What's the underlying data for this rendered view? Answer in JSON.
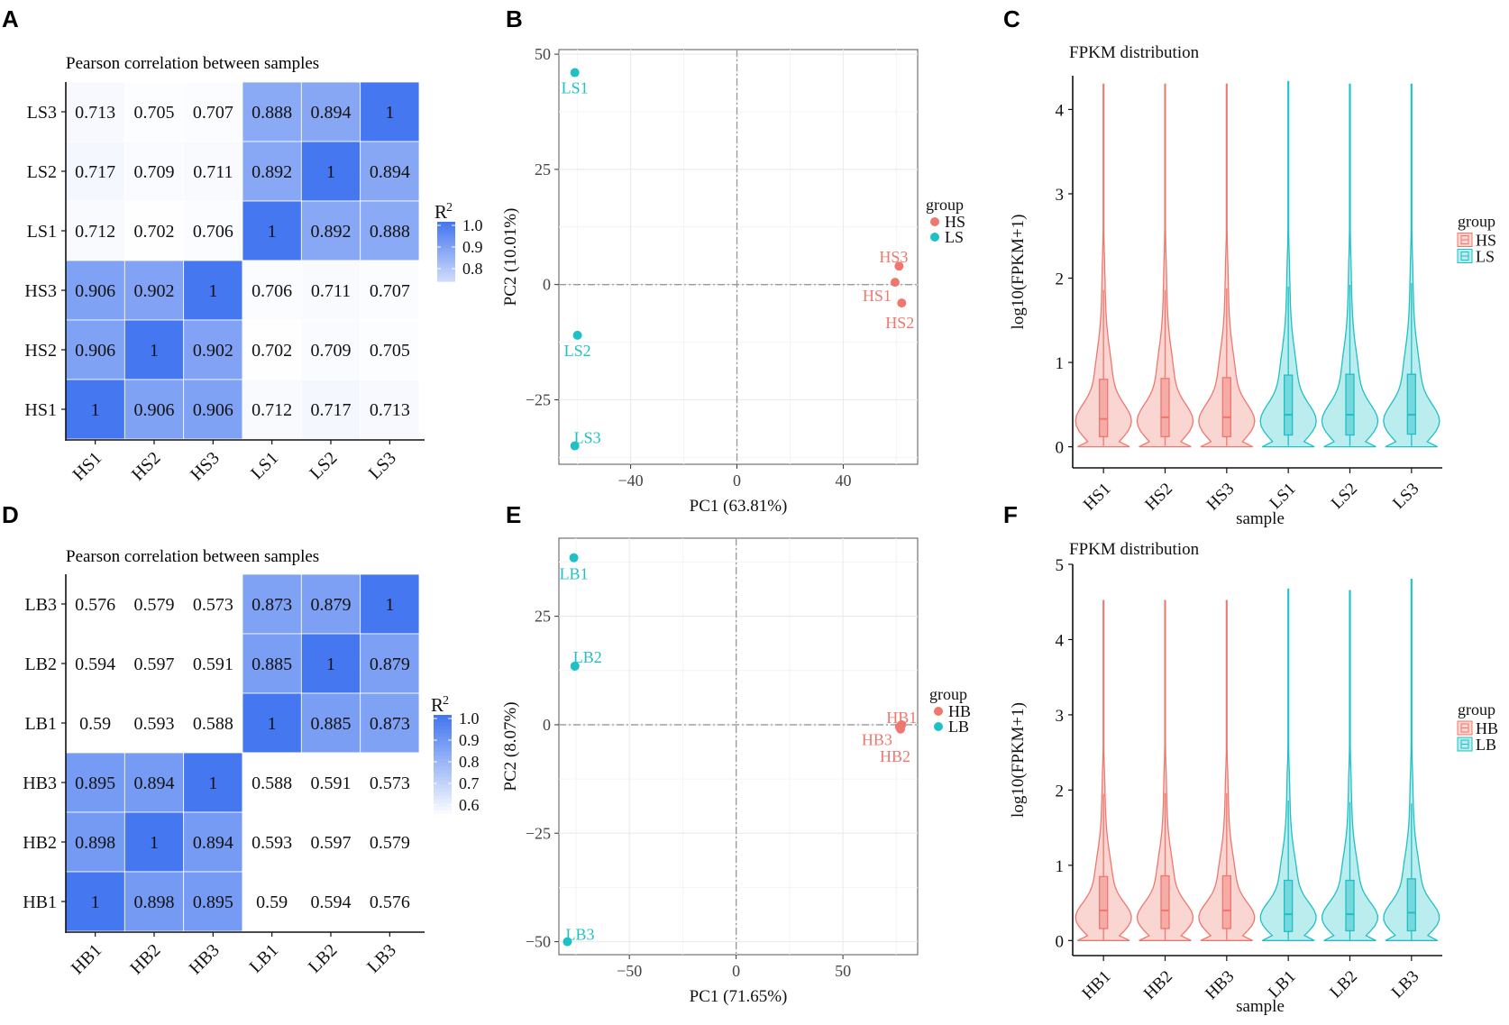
{
  "colors": {
    "hs": "#f0776e",
    "ls": "#1fc0c6",
    "heat_high": "#4577f0",
    "grid": "#ececec",
    "axis": "#111111",
    "zero_line": "#999999"
  },
  "chart_data": [
    {
      "id": "A",
      "type": "heatmap",
      "letter": "A",
      "title": "Pearson correlation between samples",
      "rows": [
        "LS3",
        "LS2",
        "LS1",
        "HS3",
        "HS2",
        "HS1"
      ],
      "cols": [
        "HS1",
        "HS2",
        "HS3",
        "LS1",
        "LS2",
        "LS3"
      ],
      "values": [
        [
          0.713,
          0.705,
          0.707,
          0.888,
          0.894,
          1
        ],
        [
          0.717,
          0.709,
          0.711,
          0.892,
          1,
          0.894
        ],
        [
          0.712,
          0.702,
          0.706,
          1,
          0.892,
          0.888
        ],
        [
          0.906,
          0.902,
          1,
          0.706,
          0.711,
          0.707
        ],
        [
          0.906,
          1,
          0.902,
          0.702,
          0.709,
          0.705
        ],
        [
          1,
          0.906,
          0.906,
          0.712,
          0.717,
          0.713
        ]
      ],
      "color_min": 0.7,
      "color_max": 1.0,
      "legend": {
        "title_base": "R",
        "title_sup": "2",
        "ticks": [
          "1.0",
          "0.9",
          "0.8"
        ],
        "tick_values": [
          1.0,
          0.9,
          0.8
        ]
      }
    },
    {
      "id": "B",
      "type": "scatter",
      "letter": "B",
      "xlabel": "PC1 (63.81%)",
      "ylabel": "PC2 (10.01%)",
      "xlim": [
        -67,
        68
      ],
      "ylim": [
        -39,
        51
      ],
      "xticks": [
        -40,
        0,
        40
      ],
      "xtick_labels": [
        "−40",
        "0",
        "40"
      ],
      "yticks": [
        -25,
        0,
        25,
        50
      ],
      "ytick_labels": [
        "−25",
        "0",
        "25",
        "50"
      ],
      "legend_title": "group",
      "legend_entries": [
        "HS",
        "LS"
      ],
      "points": [
        {
          "label": "LS1",
          "group": "LS",
          "x": -61,
          "y": 46
        },
        {
          "label": "LS2",
          "group": "LS",
          "x": -60,
          "y": -11
        },
        {
          "label": "LS3",
          "group": "LS",
          "x": -61,
          "y": -35
        },
        {
          "label": "HS3",
          "group": "HS",
          "x": 61,
          "y": 4
        },
        {
          "label": "HS1",
          "group": "HS",
          "x": 59.5,
          "y": 0.5
        },
        {
          "label": "HS2",
          "group": "HS",
          "x": 62,
          "y": -4
        }
      ]
    },
    {
      "id": "C",
      "type": "violin",
      "letter": "C",
      "title": "FPKM distribution",
      "xlabel": "sample",
      "ylabel": "log10(FPKM+1)",
      "ylim": [
        -0.25,
        4.4
      ],
      "yticks": [
        0,
        1,
        2,
        3,
        4
      ],
      "legend_title": "group",
      "legend_entries": [
        "HS",
        "LS"
      ],
      "samples": [
        {
          "name": "HS1",
          "group": "HS",
          "max": 4.3,
          "q1": 0.12,
          "median": 0.33,
          "q3": 0.8,
          "whisker_high": 1.86
        },
        {
          "name": "HS2",
          "group": "HS",
          "max": 4.3,
          "q1": 0.12,
          "median": 0.35,
          "q3": 0.81,
          "whisker_high": 1.86
        },
        {
          "name": "HS3",
          "group": "HS",
          "max": 4.3,
          "q1": 0.12,
          "median": 0.35,
          "q3": 0.82,
          "whisker_high": 1.88
        },
        {
          "name": "LS1",
          "group": "LS",
          "max": 4.33,
          "q1": 0.14,
          "median": 0.38,
          "q3": 0.85,
          "whisker_high": 1.9
        },
        {
          "name": "LS2",
          "group": "LS",
          "max": 4.3,
          "q1": 0.14,
          "median": 0.38,
          "q3": 0.86,
          "whisker_high": 1.92
        },
        {
          "name": "LS3",
          "group": "LS",
          "max": 4.3,
          "q1": 0.15,
          "median": 0.38,
          "q3": 0.86,
          "whisker_high": 1.94
        }
      ]
    },
    {
      "id": "D",
      "type": "heatmap",
      "letter": "D",
      "title": "Pearson correlation between samples",
      "rows": [
        "LB3",
        "LB2",
        "LB1",
        "HB3",
        "HB2",
        "HB1"
      ],
      "cols": [
        "HB1",
        "HB2",
        "HB3",
        "LB1",
        "LB2",
        "LB3"
      ],
      "values": [
        [
          0.576,
          0.579,
          0.573,
          0.873,
          0.879,
          1
        ],
        [
          0.594,
          0.597,
          0.591,
          0.885,
          1,
          0.879
        ],
        [
          0.59,
          0.593,
          0.588,
          1,
          0.885,
          0.873
        ],
        [
          0.895,
          0.894,
          1,
          0.588,
          0.591,
          0.573
        ],
        [
          0.898,
          1,
          0.894,
          0.593,
          0.597,
          0.579
        ],
        [
          1,
          0.898,
          0.895,
          0.59,
          0.594,
          0.576
        ]
      ],
      "color_min": 0.6,
      "color_max": 1.0,
      "legend": {
        "title_base": "R",
        "title_sup": "2",
        "ticks": [
          "1.0",
          "0.9",
          "0.8",
          "0.7",
          "0.6"
        ],
        "tick_values": [
          1.0,
          0.9,
          0.8,
          0.7,
          0.6
        ]
      }
    },
    {
      "id": "E",
      "type": "scatter",
      "letter": "E",
      "xlabel": "PC1 (71.65%)",
      "ylabel": "PC2 (8.07%)",
      "xlim": [
        -83,
        85
      ],
      "ylim": [
        -53,
        43
      ],
      "xticks": [
        -50,
        0,
        50
      ],
      "xtick_labels": [
        "−50",
        "0",
        "50"
      ],
      "yticks": [
        -50,
        -25,
        0,
        25
      ],
      "ytick_labels": [
        "−50",
        "−25",
        "0",
        "25"
      ],
      "legend_title": "group",
      "legend_entries": [
        "HB",
        "LB"
      ],
      "points": [
        {
          "label": "LB1",
          "group": "LB",
          "x": -76,
          "y": 38.5
        },
        {
          "label": "LB2",
          "group": "LB",
          "x": -75.5,
          "y": 13.5
        },
        {
          "label": "LB3",
          "group": "LB",
          "x": -79,
          "y": -50
        },
        {
          "label": "HB1",
          "group": "HB",
          "x": 77.5,
          "y": 0
        },
        {
          "label": "HB3",
          "group": "HB",
          "x": 76.5,
          "y": -0.5
        },
        {
          "label": "HB2",
          "group": "HB",
          "x": 77,
          "y": -1
        }
      ]
    },
    {
      "id": "F",
      "type": "violin",
      "letter": "F",
      "title": "FPKM distribution",
      "xlabel": "sample",
      "ylabel": "log10(FPKM+1)",
      "ylim": [
        -0.2,
        5.0
      ],
      "yticks": [
        0,
        1,
        2,
        3,
        4,
        5
      ],
      "legend_title": "group",
      "legend_entries": [
        "HB",
        "LB"
      ],
      "samples": [
        {
          "name": "HB1",
          "group": "HB",
          "max": 4.52,
          "q1": 0.16,
          "median": 0.4,
          "q3": 0.85,
          "whisker_high": 1.95
        },
        {
          "name": "HB2",
          "group": "HB",
          "max": 4.52,
          "q1": 0.16,
          "median": 0.4,
          "q3": 0.86,
          "whisker_high": 1.96
        },
        {
          "name": "HB3",
          "group": "HB",
          "max": 4.52,
          "q1": 0.16,
          "median": 0.4,
          "q3": 0.86,
          "whisker_high": 1.96
        },
        {
          "name": "LB1",
          "group": "LB",
          "max": 4.67,
          "q1": 0.12,
          "median": 0.35,
          "q3": 0.8,
          "whisker_high": 1.86
        },
        {
          "name": "LB2",
          "group": "LB",
          "max": 4.65,
          "q1": 0.13,
          "median": 0.35,
          "q3": 0.8,
          "whisker_high": 1.84
        },
        {
          "name": "LB3",
          "group": "LB",
          "max": 4.8,
          "q1": 0.13,
          "median": 0.37,
          "q3": 0.82,
          "whisker_high": 1.82
        }
      ]
    }
  ]
}
